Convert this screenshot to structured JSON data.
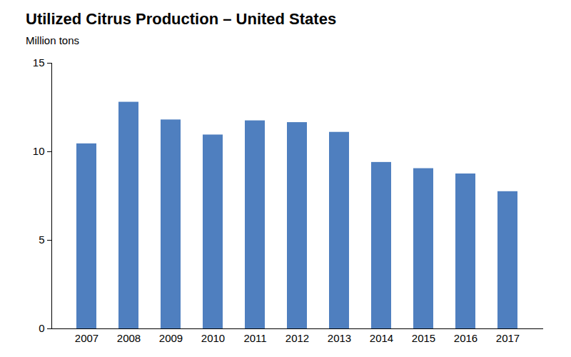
{
  "chart_data": {
    "type": "bar",
    "title": "Utilized Citrus Production – United States",
    "y_label": "Million tons",
    "categories": [
      "2007",
      "2008",
      "2009",
      "2010",
      "2011",
      "2012",
      "2013",
      "2014",
      "2015",
      "2016",
      "2017"
    ],
    "values": [
      10.45,
      12.8,
      11.8,
      10.95,
      11.75,
      11.65,
      11.1,
      9.4,
      9.05,
      8.75,
      7.75
    ],
    "color": "#4f7fbf",
    "ylim": [
      0,
      15
    ],
    "yticks": [
      0,
      5,
      10,
      15
    ],
    "grid": false
  }
}
